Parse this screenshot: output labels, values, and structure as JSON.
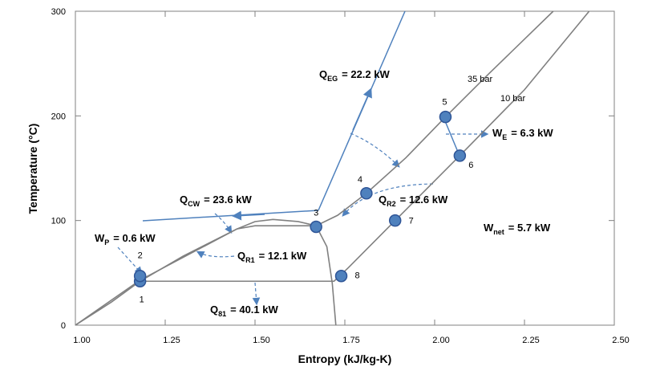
{
  "chart_data": {
    "type": "line",
    "xlabel": "Entropy (kJ/kg-K)",
    "ylabel": "Temperature (°C)",
    "xlim": [
      1.0,
      2.5
    ],
    "ylim": [
      0,
      300
    ],
    "xticks": [
      {
        "value": 1.0,
        "label": "1.00"
      },
      {
        "value": 1.25,
        "label": "1.25"
      },
      {
        "value": 1.5,
        "label": "1.50"
      },
      {
        "value": 1.75,
        "label": "1.75"
      },
      {
        "value": 2.0,
        "label": "2.00"
      },
      {
        "value": 2.25,
        "label": "2.25"
      },
      {
        "value": 2.5,
        "label": "2.50"
      }
    ],
    "yticks": [
      0,
      100,
      200,
      300
    ],
    "series": [
      {
        "color": "#808080",
        "x": [
          1.0,
          1.1,
          1.18,
          1.3,
          1.45,
          1.5,
          1.55,
          1.62,
          1.67,
          1.7,
          1.715,
          1.725
        ],
        "values": [
          0,
          22,
          42,
          66,
          92,
          99,
          101,
          99,
          95,
          75,
          40,
          0
        ]
      },
      {
        "name": "35 bar",
        "color": "#808080",
        "x": [
          1.0,
          1.18,
          1.45,
          1.5,
          1.67,
          1.73,
          1.81,
          1.92,
          2.03,
          2.15,
          2.33
        ],
        "values": [
          0,
          43,
          92,
          95,
          95,
          105,
          126,
          160,
          199,
          240,
          300
        ]
      },
      {
        "name": "10 bar",
        "color": "#808080",
        "x": [
          1.18,
          1.72,
          1.76,
          1.89,
          2.07,
          2.25,
          2.43
        ],
        "values": [
          42,
          42,
          55,
          100,
          162,
          225,
          300
        ]
      }
    ],
    "points": {
      "color": "#4f81bd",
      "labels": [
        "1",
        "2",
        "3",
        "4",
        "5",
        "6",
        "7",
        "8"
      ],
      "x": [
        1.18,
        1.18,
        1.67,
        1.81,
        2.03,
        2.07,
        1.89,
        1.74
      ],
      "values": [
        42,
        47,
        94,
        126,
        199,
        162,
        100,
        47
      ]
    },
    "annotations": [
      {
        "symbol": "Q",
        "sub": "EG",
        "text": "= 22.2 kW"
      },
      {
        "symbol": "Q",
        "sub": "CW",
        "text": "= 23.6 kW"
      },
      {
        "symbol": "W",
        "sub": "P",
        "text": "= 0.6 kW"
      },
      {
        "symbol": "Q",
        "sub": "R1",
        "text": "= 12.1 kW"
      },
      {
        "symbol": "Q",
        "sub": "81",
        "text": "= 40.1 kW"
      },
      {
        "symbol": "Q",
        "sub": "R2",
        "text": "= 12.6 kW"
      },
      {
        "symbol": "W",
        "sub": "E",
        "text": "= 6.3 kW"
      },
      {
        "symbol": "W",
        "sub": "net",
        "text": "= 5.7 kW"
      }
    ]
  }
}
